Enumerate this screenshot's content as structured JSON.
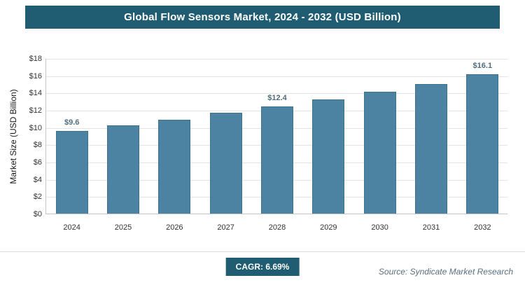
{
  "chart_data": {
    "type": "bar",
    "title": "Global Flow Sensors Market, 2024 - 2032 (USD Billion)",
    "categories": [
      "2024",
      "2025",
      "2026",
      "2027",
      "2028",
      "2029",
      "2030",
      "2031",
      "2032"
    ],
    "values": [
      9.6,
      10.2,
      10.9,
      11.7,
      12.4,
      13.2,
      14.1,
      15.0,
      16.1
    ],
    "bar_labels": [
      "$9.6",
      "",
      "",
      "",
      "$12.4",
      "",
      "",
      "",
      "$16.1"
    ],
    "ylabel": "Market Size (USD Billion)",
    "xlabel": "",
    "ylim": [
      0,
      18
    ],
    "ytick_step": 2,
    "ytick_prefix": "$",
    "grid": true,
    "legend": "none"
  },
  "footer": {
    "cagr_label": "CAGR: 6.69%",
    "source": "Source: Syndicate Market Research"
  },
  "colors": {
    "header_bg": "#205d72",
    "header_text": "#ffffff",
    "bar_fill": "#4d83a2",
    "bar_border": "#3e7390",
    "label_color": "#4f6d7d",
    "grid_color": "#e3e3e3",
    "axis_color": "#c3c3c3"
  }
}
